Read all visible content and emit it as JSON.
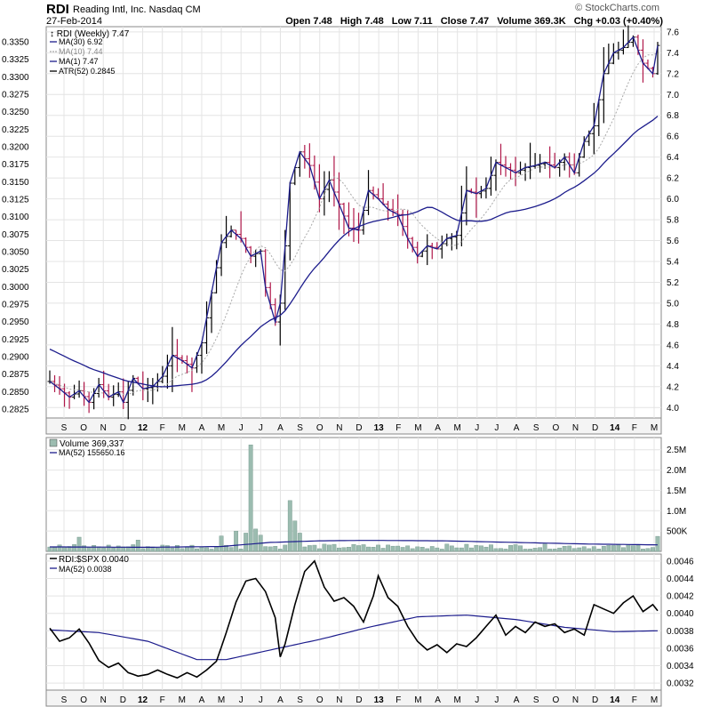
{
  "header": {
    "symbol": "RDI",
    "company": "Reading Intl, Inc.",
    "exchange": "Nasdaq CM",
    "date": "27-Feb-2014",
    "open_label": "Open 7.48",
    "high_label": "High 7.48",
    "low_label": "Low 7.11",
    "close_label": "Close 7.47",
    "volume_label": "Volume 369.3K",
    "chg_label": "Chg +0.03 (+0.40%)",
    "brand": "© StockCharts.com"
  },
  "colors": {
    "up_bar": "#000000",
    "down_bar": "#b0184a",
    "ma30": "#1c1c8c",
    "ma10": "#a8a8a8",
    "ma1": "#1c1c8c",
    "volume": "#9cbcb0",
    "ratio": "#000000",
    "grid": "#e4e4e4"
  },
  "chart_data": [
    {
      "type": "line",
      "title": "RDI (Weekly) 7.47",
      "legend": [
        {
          "name": "MA(30) 6.92",
          "style": "solid",
          "color": "#1c1c8c"
        },
        {
          "name": "MA(10) 7.44",
          "style": "dotted",
          "color": "#a8a8a8"
        },
        {
          "name": "MA(1) 7.47",
          "style": "solid",
          "color": "#1c1c8c"
        },
        {
          "name": "ATR(52) 0.2845",
          "style": "solid",
          "color": "#000000"
        }
      ],
      "legend_placement": "top-left",
      "right_axis_ticks": [
        "7.6",
        "7.4",
        "7.2",
        "7.0",
        "6.8",
        "6.6",
        "6.4",
        "6.2",
        "6.0",
        "5.8",
        "5.6",
        "5.4",
        "5.2",
        "5.0",
        "4.8",
        "4.6",
        "4.4",
        "4.2",
        "4.0"
      ],
      "left_axis_ticks": [
        "0.3350",
        "0.3325",
        "0.3300",
        "0.3275",
        "0.3250",
        "0.3225",
        "0.3200",
        "0.3175",
        "0.3150",
        "0.3125",
        "0.3100",
        "0.3075",
        "0.3050",
        "0.3025",
        "0.3000",
        "0.2975",
        "0.2950",
        "0.2925",
        "0.2900",
        "0.2875",
        "0.2850",
        "0.2825"
      ],
      "x_tick_labels": [
        "S",
        "O",
        "N",
        "D",
        "12",
        "F",
        "M",
        "A",
        "M",
        "J",
        "J",
        "A",
        "S",
        "O",
        "N",
        "D",
        "13",
        "F",
        "M",
        "A",
        "M",
        "J",
        "J",
        "A",
        "S",
        "O",
        "N",
        "D",
        "14",
        "F",
        "M"
      ],
      "ylim": [
        3.9,
        7.65
      ],
      "grid": true,
      "close_anchors": [
        [
          0,
          4.25
        ],
        [
          2,
          4.18
        ],
        [
          4,
          4.1
        ],
        [
          6,
          4.16
        ],
        [
          8,
          4.05
        ],
        [
          10,
          4.22
        ],
        [
          12,
          4.1
        ],
        [
          14,
          4.15
        ],
        [
          15,
          4.05
        ],
        [
          17,
          4.28
        ],
        [
          19,
          4.18
        ],
        [
          21,
          4.2
        ],
        [
          23,
          4.3
        ],
        [
          25,
          4.5
        ],
        [
          27,
          4.45
        ],
        [
          29,
          4.38
        ],
        [
          31,
          4.62
        ],
        [
          33,
          5.1
        ],
        [
          35,
          5.58
        ],
        [
          37,
          5.7
        ],
        [
          39,
          5.62
        ],
        [
          41,
          5.45
        ],
        [
          43,
          5.5
        ],
        [
          44,
          5.15
        ],
        [
          46,
          4.82
        ],
        [
          47,
          5.0
        ],
        [
          48,
          5.55
        ],
        [
          49,
          6.15
        ],
        [
          51,
          6.45
        ],
        [
          53,
          6.32
        ],
        [
          55,
          6.0
        ],
        [
          57,
          6.18
        ],
        [
          59,
          5.95
        ],
        [
          61,
          5.72
        ],
        [
          63,
          5.7
        ],
        [
          65,
          6.08
        ],
        [
          67,
          6.0
        ],
        [
          69,
          5.9
        ],
        [
          71,
          5.85
        ],
        [
          73,
          5.62
        ],
        [
          75,
          5.45
        ],
        [
          77,
          5.55
        ],
        [
          79,
          5.52
        ],
        [
          81,
          5.62
        ],
        [
          83,
          5.65
        ],
        [
          85,
          6.08
        ],
        [
          87,
          6.05
        ],
        [
          89,
          6.1
        ],
        [
          91,
          6.35
        ],
        [
          93,
          6.3
        ],
        [
          95,
          6.25
        ],
        [
          97,
          6.3
        ],
        [
          99,
          6.32
        ],
        [
          101,
          6.35
        ],
        [
          103,
          6.3
        ],
        [
          105,
          6.4
        ],
        [
          107,
          6.25
        ],
        [
          109,
          6.55
        ],
        [
          111,
          6.7
        ],
        [
          113,
          7.2
        ],
        [
          115,
          7.4
        ],
        [
          117,
          7.45
        ],
        [
          119,
          7.55
        ],
        [
          121,
          7.3
        ],
        [
          123,
          7.2
        ],
        [
          124,
          7.47
        ]
      ]
    },
    {
      "type": "bar",
      "title": "Volume 369,337",
      "legend": [
        {
          "name": "MA(52) 155650.16",
          "style": "solid",
          "color": "#1c1c8c"
        }
      ],
      "right_axis_ticks": [
        "2.5M",
        "2.0M",
        "1.5M",
        "1.0M",
        "500K"
      ],
      "ylim": [
        0,
        2.8
      ],
      "unit": "millions",
      "spikes": [
        [
          6,
          0.35
        ],
        [
          18,
          0.28
        ],
        [
          35,
          0.38
        ],
        [
          38,
          0.5
        ],
        [
          40,
          0.45
        ],
        [
          41,
          2.62
        ],
        [
          42,
          0.55
        ],
        [
          43,
          0.4
        ],
        [
          49,
          1.25
        ],
        [
          50,
          0.75
        ],
        [
          51,
          0.45
        ],
        [
          124,
          0.37
        ]
      ],
      "base_value": 0.14,
      "ma52": [
        [
          0,
          0.11
        ],
        [
          20,
          0.1
        ],
        [
          35,
          0.12
        ],
        [
          45,
          0.22
        ],
        [
          55,
          0.26
        ],
        [
          65,
          0.27
        ],
        [
          80,
          0.26
        ],
        [
          95,
          0.22
        ],
        [
          110,
          0.18
        ],
        [
          124,
          0.16
        ]
      ]
    },
    {
      "type": "line",
      "title": "RDI:$SPX 0.0040",
      "legend": [
        {
          "name": "MA(52) 0.0038",
          "style": "solid",
          "color": "#1c1c8c"
        }
      ],
      "right_axis_ticks": [
        "0.0046",
        "0.0044",
        "0.0042",
        "0.0040",
        "0.0038",
        "0.0036",
        "0.0034",
        "0.0032"
      ],
      "ylim": [
        0.00312,
        0.00468
      ],
      "ratio_anchors": [
        [
          0,
          0.00383
        ],
        [
          2,
          0.00368
        ],
        [
          4,
          0.00372
        ],
        [
          6,
          0.00382
        ],
        [
          8,
          0.00366
        ],
        [
          10,
          0.00346
        ],
        [
          12,
          0.00338
        ],
        [
          14,
          0.00343
        ],
        [
          16,
          0.00332
        ],
        [
          18,
          0.00328
        ],
        [
          20,
          0.0033
        ],
        [
          22,
          0.00335
        ],
        [
          24,
          0.0033
        ],
        [
          26,
          0.00326
        ],
        [
          28,
          0.00332
        ],
        [
          30,
          0.00327
        ],
        [
          32,
          0.00335
        ],
        [
          34,
          0.00345
        ],
        [
          36,
          0.00378
        ],
        [
          38,
          0.00413
        ],
        [
          40,
          0.00437
        ],
        [
          42,
          0.0044
        ],
        [
          44,
          0.00425
        ],
        [
          46,
          0.00395
        ],
        [
          47,
          0.0035
        ],
        [
          48,
          0.00365
        ],
        [
          50,
          0.0041
        ],
        [
          52,
          0.00448
        ],
        [
          54,
          0.0046
        ],
        [
          56,
          0.0043
        ],
        [
          58,
          0.00414
        ],
        [
          60,
          0.00418
        ],
        [
          62,
          0.00408
        ],
        [
          64,
          0.0039
        ],
        [
          66,
          0.0042
        ],
        [
          67,
          0.00443
        ],
        [
          69,
          0.00418
        ],
        [
          71,
          0.00408
        ],
        [
          73,
          0.00385
        ],
        [
          75,
          0.00368
        ],
        [
          77,
          0.00358
        ],
        [
          79,
          0.00364
        ],
        [
          81,
          0.00355
        ],
        [
          83,
          0.00365
        ],
        [
          85,
          0.00362
        ],
        [
          87,
          0.00372
        ],
        [
          89,
          0.00385
        ],
        [
          91,
          0.00398
        ],
        [
          93,
          0.00375
        ],
        [
          95,
          0.00385
        ],
        [
          97,
          0.00378
        ],
        [
          99,
          0.0039
        ],
        [
          101,
          0.00385
        ],
        [
          103,
          0.00388
        ],
        [
          105,
          0.00378
        ],
        [
          107,
          0.00382
        ],
        [
          109,
          0.00375
        ],
        [
          111,
          0.0041
        ],
        [
          113,
          0.00405
        ],
        [
          115,
          0.004
        ],
        [
          117,
          0.00412
        ],
        [
          119,
          0.0042
        ],
        [
          121,
          0.00402
        ],
        [
          123,
          0.0041
        ],
        [
          124,
          0.00403
        ]
      ],
      "ma52": [
        [
          0,
          0.00381
        ],
        [
          10,
          0.00378
        ],
        [
          20,
          0.00368
        ],
        [
          30,
          0.00347
        ],
        [
          36,
          0.00347
        ],
        [
          45,
          0.00358
        ],
        [
          55,
          0.0037
        ],
        [
          65,
          0.00384
        ],
        [
          75,
          0.00396
        ],
        [
          85,
          0.00398
        ],
        [
          95,
          0.00393
        ],
        [
          105,
          0.00384
        ],
        [
          115,
          0.00379
        ],
        [
          124,
          0.0038
        ]
      ]
    }
  ]
}
